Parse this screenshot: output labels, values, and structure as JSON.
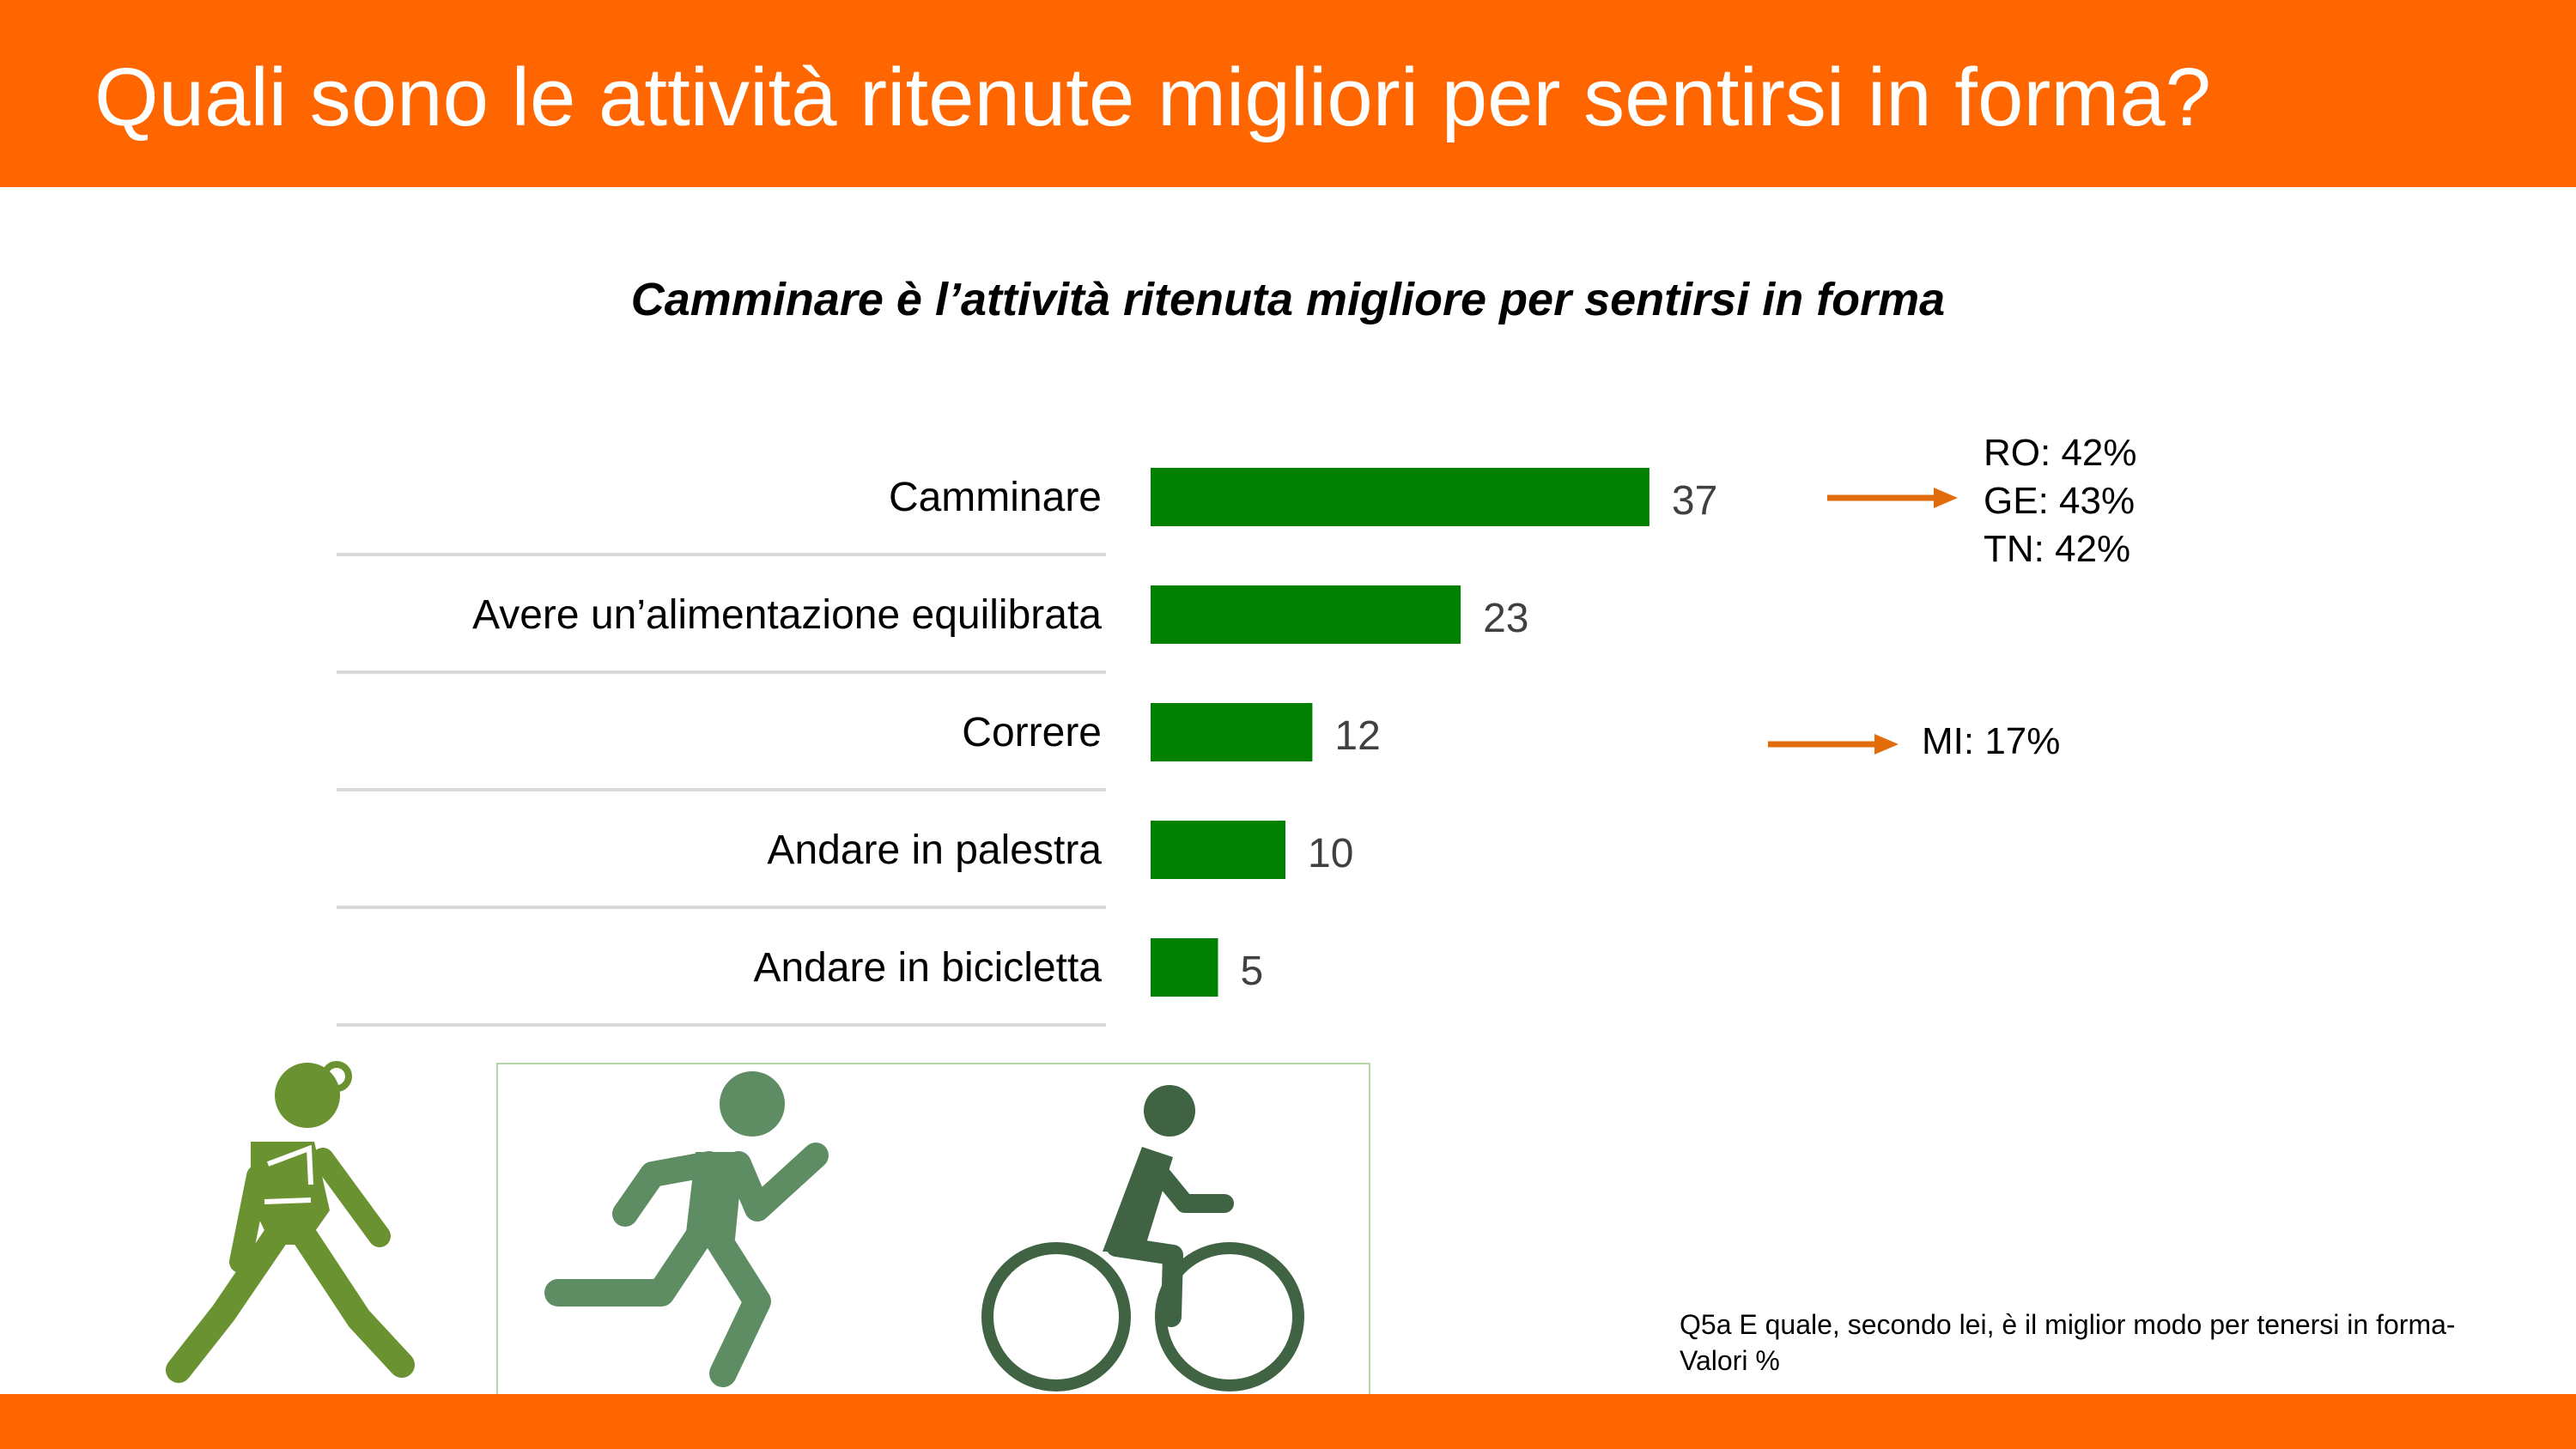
{
  "header": {
    "title": "Quali sono le attività ritenute migliori per sentirsi in forma?"
  },
  "subtitle": "Camminare è l’attività ritenuta migliore per sentirsi in forma",
  "chart_data": {
    "type": "bar",
    "orientation": "horizontal",
    "categories": [
      "Camminare",
      "Avere un’alimentazione equilibrata",
      "Correre",
      "Andare in palestra",
      "Andare in bicicletta"
    ],
    "values": [
      37,
      23,
      12,
      10,
      5
    ],
    "value_labels": [
      "37",
      "23",
      "12",
      "10",
      "5"
    ],
    "bar_color": "#008000",
    "title": "Camminare è l’attività ritenuta migliore per sentirsi in forma",
    "xlabel": "",
    "ylabel": "",
    "grid": false,
    "legend": "none",
    "annotations": [
      {
        "category": "Camminare",
        "lines": [
          "RO: 42%",
          "GE: 43%",
          "TN: 42%"
        ]
      },
      {
        "category": "Correre",
        "lines": [
          "MI: 17%"
        ]
      }
    ]
  },
  "annotations": {
    "group1": [
      "RO: 42%",
      "GE: 43%",
      "TN: 42%"
    ],
    "group2": [
      "MI: 17%"
    ]
  },
  "footnote": {
    "line1": "Q5a E quale, secondo lei, è il miglior modo per tenersi in forma-",
    "line2": "Valori %"
  },
  "icons": [
    "walking-woman-icon",
    "running-man-icon",
    "cyclist-icon"
  ],
  "colors": {
    "accent": "#ff6600",
    "bar": "#008000",
    "arrow": "#e36c0a",
    "icon_walk": "#6b9231",
    "icon_run": "#5f8d63",
    "icon_bike": "#3f6343"
  }
}
